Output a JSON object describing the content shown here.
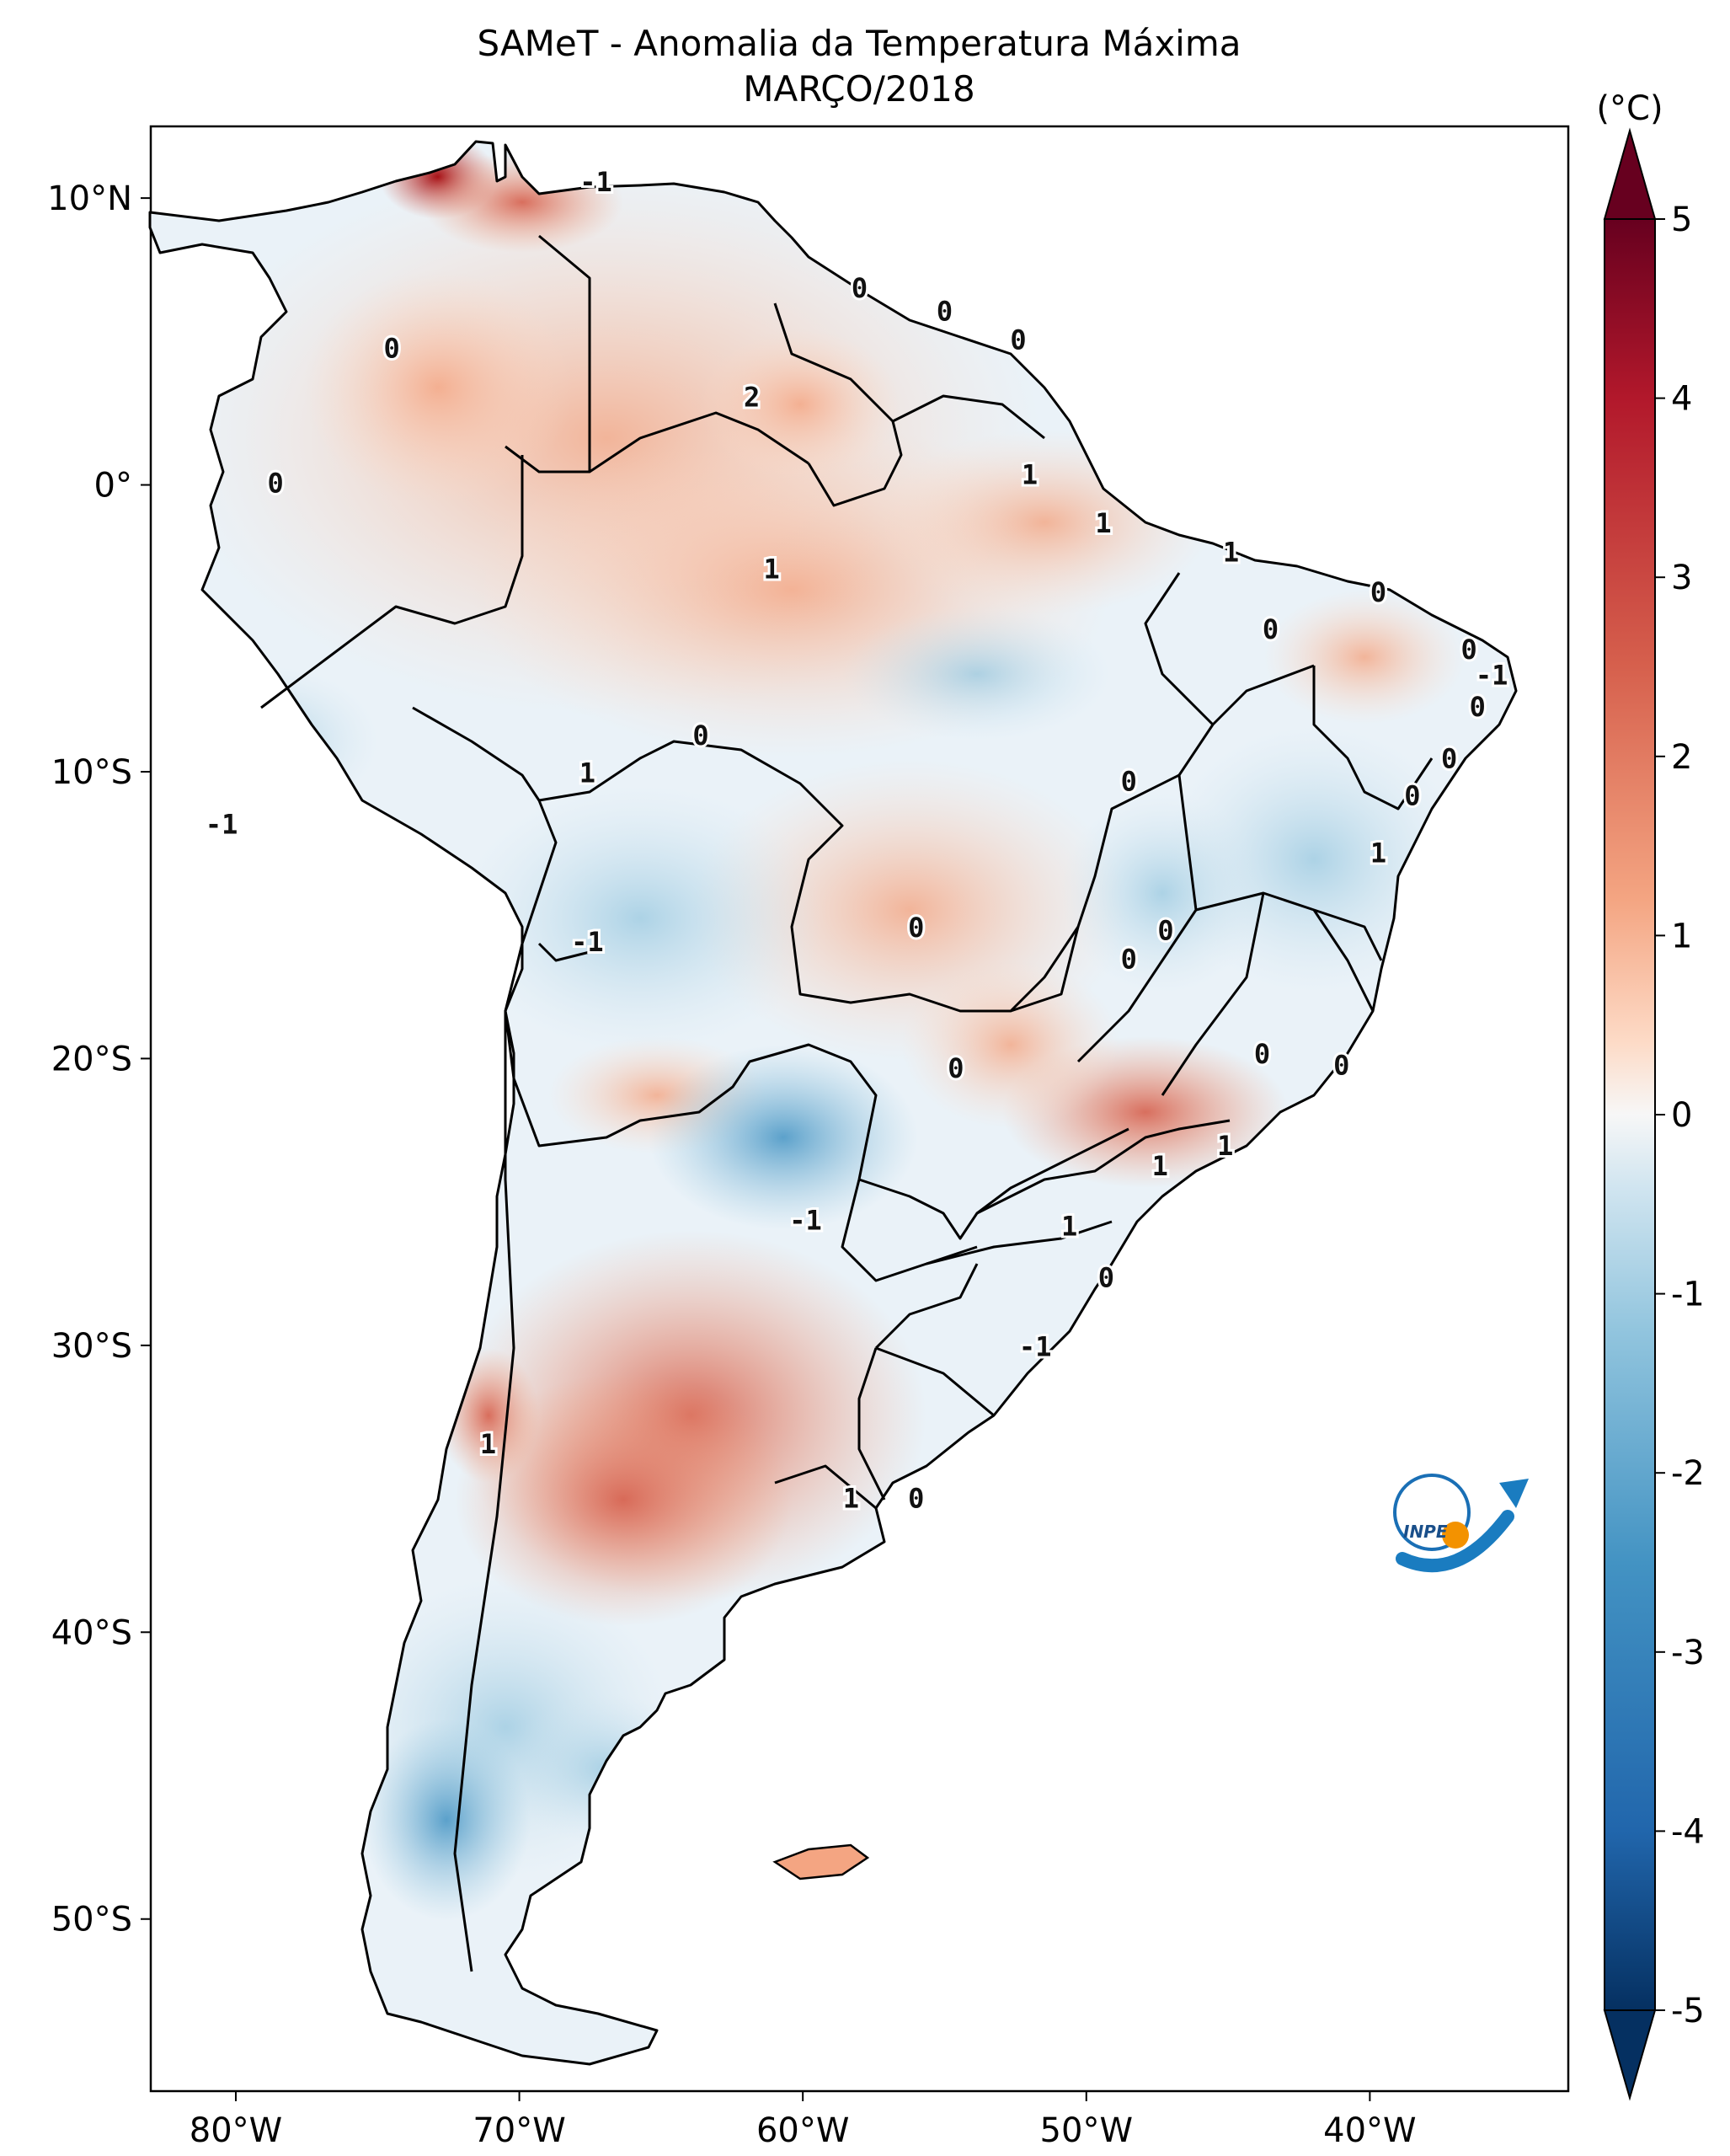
{
  "title": {
    "line1": "SAMeT - Anomalia da Temperatura Máxima",
    "line2": "MARÇO/2018"
  },
  "axes": {
    "lat_labels": [
      "10°N",
      "0°",
      "10°S",
      "20°S",
      "30°S",
      "40°S",
      "50°S"
    ],
    "lon_labels": [
      "80°W",
      "70°W",
      "60°W",
      "50°W",
      "40°W"
    ],
    "lat_values": [
      10,
      0,
      -10,
      -20,
      -30,
      -40,
      -50
    ],
    "lon_values": [
      -80,
      -70,
      -60,
      -50,
      -40
    ],
    "lon_range": [
      -83,
      -33
    ],
    "lat_range": [
      12.5,
      -56
    ]
  },
  "colorbar": {
    "unit": "(°C)",
    "ticks": [
      "5",
      "4",
      "3",
      "2",
      "1",
      "0",
      "-1",
      "-2",
      "-3",
      "-4",
      "-5"
    ],
    "range": [
      -5,
      5
    ],
    "colors": {
      "max": "#67001f",
      "warm": "#d6604d",
      "light_warm": "#f4a582",
      "neutral": "#f7f7f7",
      "light_cool": "#92c5de",
      "cool": "#4393c3",
      "min": "#053061"
    }
  },
  "contour_labels": [
    {
      "text": "-1",
      "lon": -67.3,
      "lat": 10.5
    },
    {
      "text": "0",
      "lon": -74.5,
      "lat": 4.7
    },
    {
      "text": "0",
      "lon": -58.0,
      "lat": 6.8
    },
    {
      "text": "0",
      "lon": -55.0,
      "lat": 6.0
    },
    {
      "text": "0",
      "lon": -52.4,
      "lat": 5.0
    },
    {
      "text": "2",
      "lon": -61.8,
      "lat": 3.0
    },
    {
      "text": "0",
      "lon": -78.6,
      "lat": 0.0
    },
    {
      "text": "1",
      "lon": -52.0,
      "lat": 0.3
    },
    {
      "text": "1",
      "lon": -49.4,
      "lat": -1.4
    },
    {
      "text": "1",
      "lon": -61.1,
      "lat": -3.0
    },
    {
      "text": "1",
      "lon": -44.9,
      "lat": -2.4
    },
    {
      "text": "0",
      "lon": -39.7,
      "lat": -3.8
    },
    {
      "text": "0",
      "lon": -43.5,
      "lat": -5.1
    },
    {
      "text": "0",
      "lon": -36.5,
      "lat": -5.8
    },
    {
      "text": "-1",
      "lon": -35.7,
      "lat": -6.7
    },
    {
      "text": "0",
      "lon": -36.2,
      "lat": -7.8
    },
    {
      "text": "0",
      "lon": -37.2,
      "lat": -9.6
    },
    {
      "text": "0",
      "lon": -38.5,
      "lat": -10.9
    },
    {
      "text": "1",
      "lon": -39.7,
      "lat": -12.9
    },
    {
      "text": "0",
      "lon": -48.5,
      "lat": -10.4
    },
    {
      "text": "1",
      "lon": -67.6,
      "lat": -10.1
    },
    {
      "text": "0",
      "lon": -63.6,
      "lat": -8.8
    },
    {
      "text": "-1",
      "lon": -80.5,
      "lat": -11.9
    },
    {
      "text": "-1",
      "lon": -67.6,
      "lat": -16.0
    },
    {
      "text": "0",
      "lon": -56.0,
      "lat": -15.5
    },
    {
      "text": "0",
      "lon": -47.2,
      "lat": -15.6
    },
    {
      "text": "0",
      "lon": -48.5,
      "lat": -16.6
    },
    {
      "text": "0",
      "lon": -54.6,
      "lat": -20.4
    },
    {
      "text": "0",
      "lon": -43.8,
      "lat": -19.9
    },
    {
      "text": "0",
      "lon": -41.0,
      "lat": -20.3
    },
    {
      "text": "1",
      "lon": -45.1,
      "lat": -23.1
    },
    {
      "text": "1",
      "lon": -47.4,
      "lat": -23.8
    },
    {
      "text": "1",
      "lon": -50.6,
      "lat": -25.9
    },
    {
      "text": "-1",
      "lon": -59.9,
      "lat": -25.7
    },
    {
      "text": "0",
      "lon": -49.3,
      "lat": -27.7
    },
    {
      "text": "-1",
      "lon": -51.8,
      "lat": -30.1
    },
    {
      "text": "1",
      "lon": -71.1,
      "lat": -33.5
    },
    {
      "text": "1",
      "lon": -58.3,
      "lat": -35.4
    },
    {
      "text": "0",
      "lon": -56.0,
      "lat": -35.4
    }
  ],
  "logo": {
    "text": "INPE"
  }
}
